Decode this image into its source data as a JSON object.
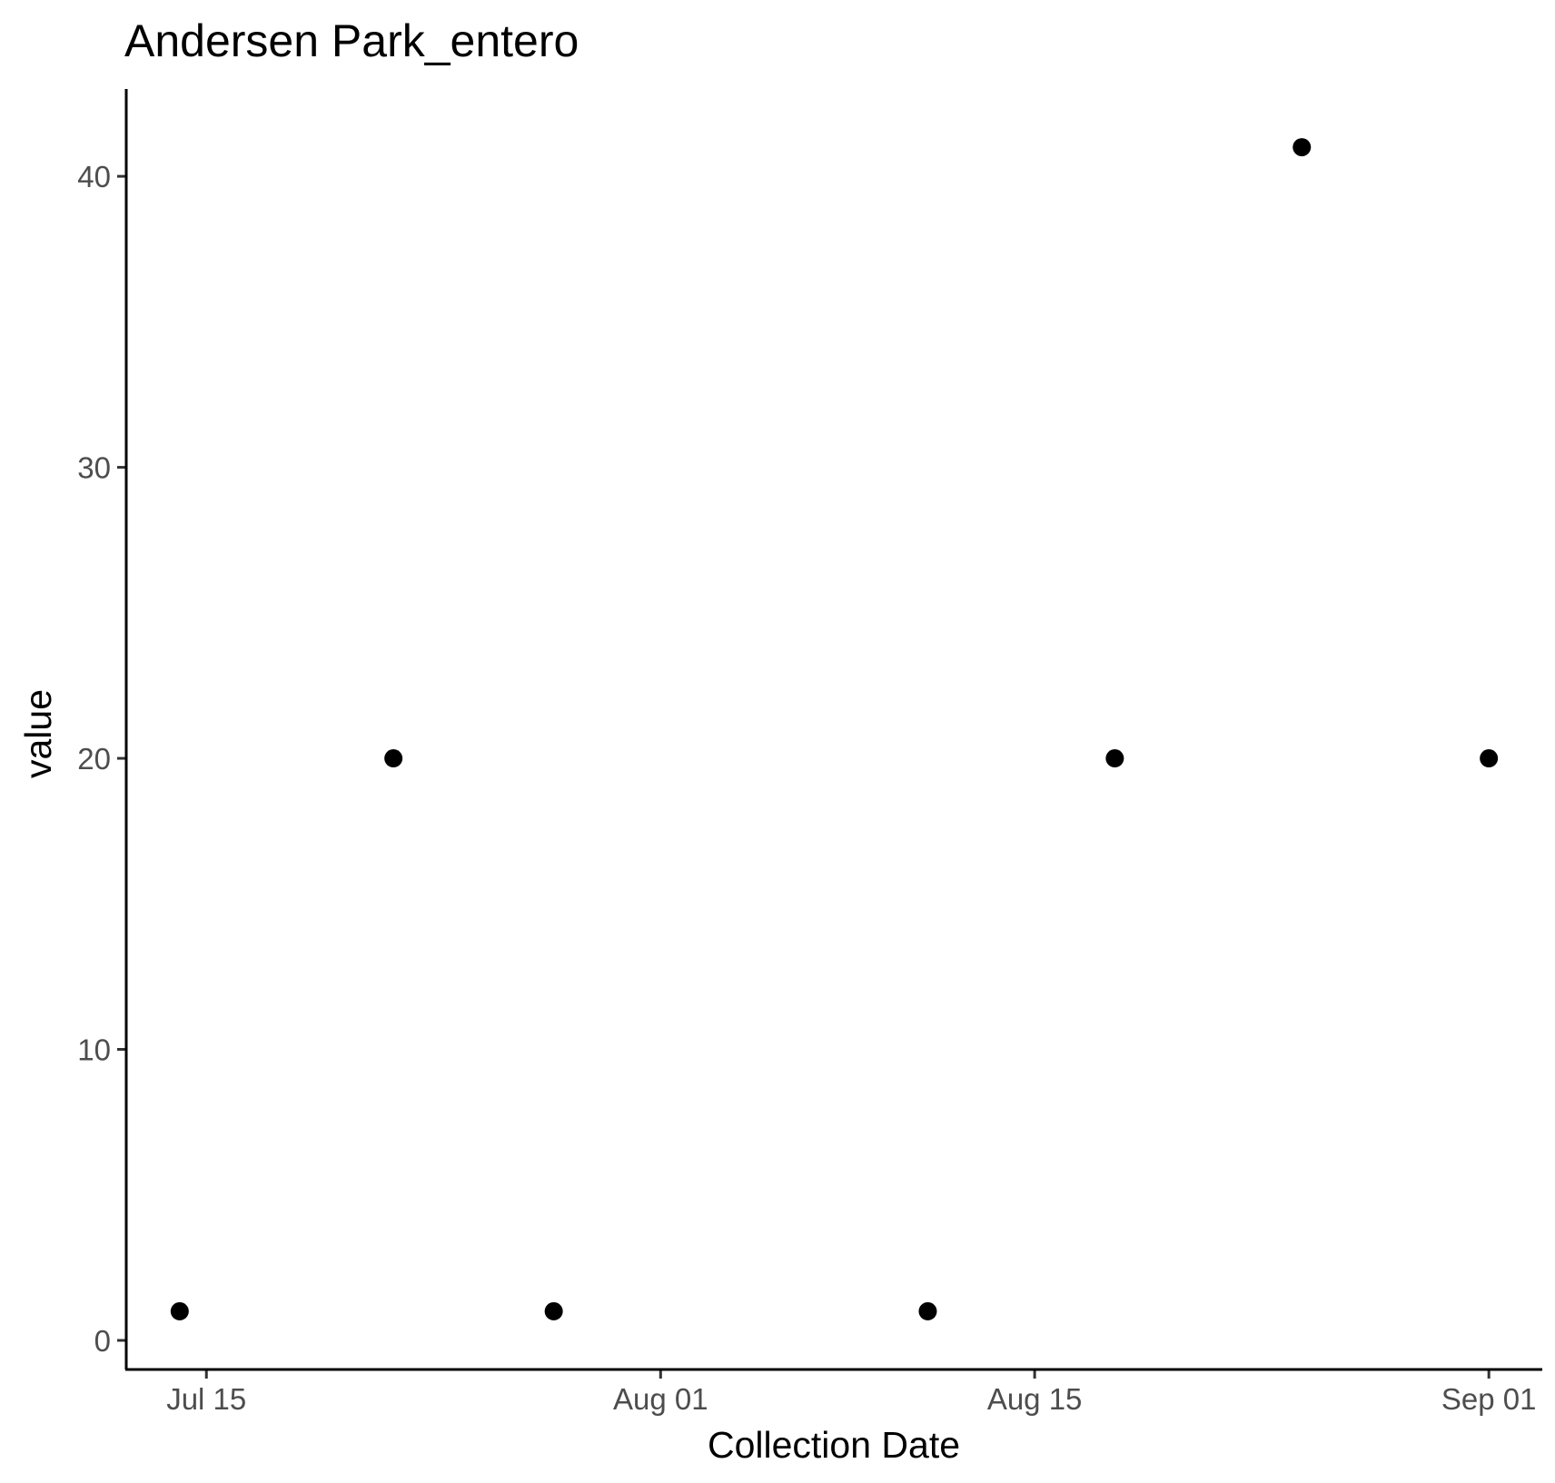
{
  "chart_data": {
    "type": "scatter",
    "title": "Andersen Park_entero",
    "xlabel": "Collection Date",
    "ylabel": "value",
    "x_type": "date",
    "xlim": [
      "2022-07-12",
      "2022-09-03"
    ],
    "ylim": [
      -1,
      43
    ],
    "x_ticks": [
      {
        "value": "2022-07-15",
        "label": "Jul 15"
      },
      {
        "value": "2022-08-01",
        "label": "Aug 01"
      },
      {
        "value": "2022-08-15",
        "label": "Aug 15"
      },
      {
        "value": "2022-09-01",
        "label": "Sep 01"
      }
    ],
    "y_ticks": [
      {
        "value": 0,
        "label": "0"
      },
      {
        "value": 10,
        "label": "10"
      },
      {
        "value": 20,
        "label": "20"
      },
      {
        "value": 30,
        "label": "30"
      },
      {
        "value": 40,
        "label": "40"
      }
    ],
    "series": [
      {
        "color": "#000000",
        "points": [
          {
            "x": "2022-07-14",
            "y": 1
          },
          {
            "x": "2022-07-22",
            "y": 20
          },
          {
            "x": "2022-07-28",
            "y": 1
          },
          {
            "x": "2022-08-11",
            "y": 1
          },
          {
            "x": "2022-08-18",
            "y": 20
          },
          {
            "x": "2022-08-25",
            "y": 41
          },
          {
            "x": "2022-09-01",
            "y": 20
          }
        ]
      }
    ],
    "grid": false,
    "legend": "none"
  }
}
